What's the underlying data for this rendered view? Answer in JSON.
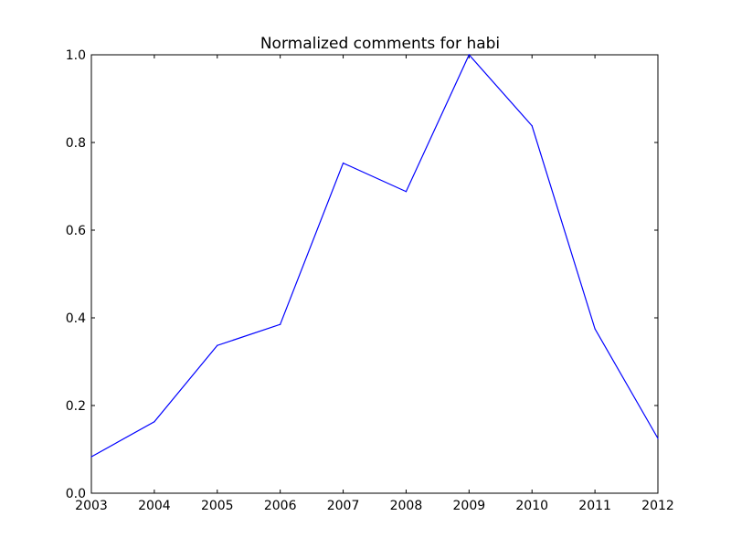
{
  "chart_data": {
    "type": "line",
    "title": "Normalized comments for habi",
    "xlabel": "",
    "ylabel": "",
    "x": [
      2003,
      2004,
      2005,
      2006,
      2007,
      2008,
      2009,
      2010,
      2011,
      2012
    ],
    "series": [
      {
        "values": [
          0.083,
          0.163,
          0.337,
          0.385,
          0.753,
          0.688,
          1.0,
          0.838,
          0.375,
          0.125
        ],
        "color": "#0000ff"
      }
    ],
    "xlim": [
      2003,
      2012
    ],
    "ylim": [
      0,
      1.0
    ],
    "xticks": [
      "2003",
      "2004",
      "2005",
      "2006",
      "2007",
      "2008",
      "2009",
      "2010",
      "2011",
      "2012"
    ],
    "yticks": [
      "0.0",
      "0.2",
      "0.4",
      "0.6",
      "0.8",
      "1.0"
    ],
    "grid": false,
    "legend": "none"
  }
}
